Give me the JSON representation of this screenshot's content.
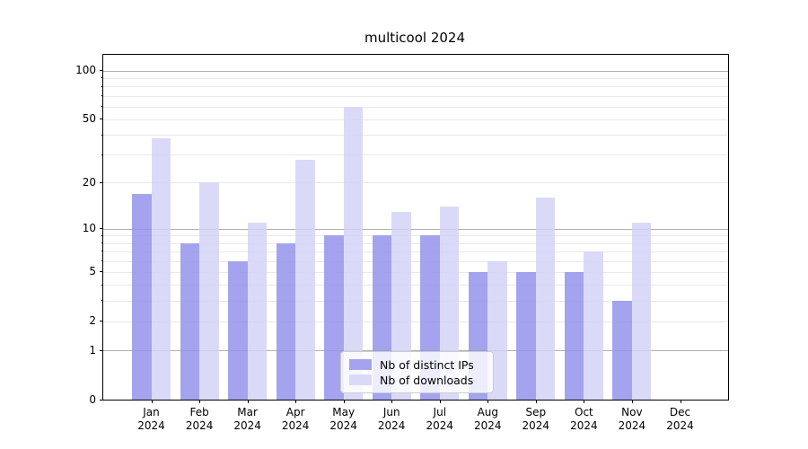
{
  "title": "multicool 2024",
  "chart_data": {
    "type": "bar",
    "title": "multicool 2024",
    "x_axis": {
      "categories": [
        {
          "month": "Jan",
          "year": "2024"
        },
        {
          "month": "Feb",
          "year": "2024"
        },
        {
          "month": "Mar",
          "year": "2024"
        },
        {
          "month": "Apr",
          "year": "2024"
        },
        {
          "month": "May",
          "year": "2024"
        },
        {
          "month": "Jun",
          "year": "2024"
        },
        {
          "month": "Jul",
          "year": "2024"
        },
        {
          "month": "Aug",
          "year": "2024"
        },
        {
          "month": "Sep",
          "year": "2024"
        },
        {
          "month": "Oct",
          "year": "2024"
        },
        {
          "month": "Nov",
          "year": "2024"
        },
        {
          "month": "Dec",
          "year": "2024"
        }
      ]
    },
    "y_axis": {
      "scale": "log10(1+x)",
      "ticks": [
        0,
        1,
        2,
        5,
        10,
        20,
        50,
        100
      ],
      "major_gridlines": [
        1,
        10,
        100
      ],
      "minor_gridlines": [
        2,
        3,
        4,
        5,
        6,
        7,
        8,
        9,
        20,
        30,
        40,
        50,
        60,
        70,
        80,
        90
      ],
      "ylim": [
        0,
        125
      ],
      "grid": true
    },
    "series": [
      {
        "name": "Nb of distinct IPs",
        "color": "rgba(148,148,235,0.85)",
        "values": [
          17,
          8,
          6,
          8,
          9,
          9,
          9,
          5,
          5,
          5,
          3,
          0
        ]
      },
      {
        "name": "Nb of downloads",
        "color": "rgba(211,211,247,0.85)",
        "values": [
          38,
          20,
          11,
          28,
          60,
          13,
          14,
          6,
          16,
          7,
          11,
          0
        ]
      }
    ],
    "legend": {
      "position": "lower center",
      "entries": [
        "Nb of distinct IPs",
        "Nb of downloads"
      ]
    }
  },
  "colors": {
    "bar_distinct_ips": "rgba(148,148,235,0.85)",
    "bar_downloads": "rgba(211,211,247,0.85)",
    "major_grid": "#b0b0b0",
    "minor_grid": "#e9e9e9",
    "spine": "#000000",
    "background": "#ffffff"
  }
}
